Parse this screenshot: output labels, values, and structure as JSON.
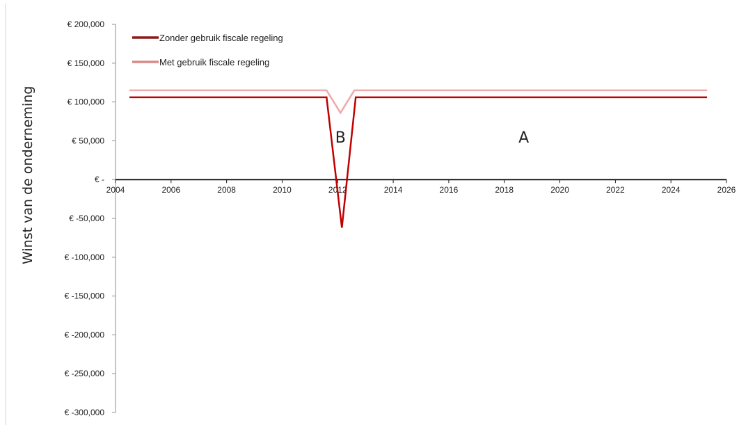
{
  "chart_data": {
    "type": "line",
    "title": "",
    "xlabel": "",
    "ylabel": "Winst van de onderneming",
    "xlim": [
      2004,
      2026
    ],
    "ylim": [
      -300000,
      200000
    ],
    "x_ticks": [
      "2004",
      "2006",
      "2008",
      "2010",
      "2012",
      "2014",
      "2016",
      "2018",
      "2020",
      "2022",
      "2024",
      "2026"
    ],
    "x_tick_values": [
      2004,
      2006,
      2008,
      2010,
      2012,
      2014,
      2016,
      2018,
      2020,
      2022,
      2024,
      2026
    ],
    "y_ticks": [
      "€ 200,000",
      "€ 150,000",
      "€ 100,000",
      "€ 50,000",
      "€ -",
      "€ -50,000",
      "€ -100,000",
      "€ -150,000",
      "€ -200,000",
      "€ -250,000",
      "€ -300,000"
    ],
    "y_tick_values": [
      200000,
      150000,
      100000,
      50000,
      0,
      -50000,
      -100000,
      -150000,
      -200000,
      -250000,
      -300000
    ],
    "grid": false,
    "legend_position": "top-left",
    "series": [
      {
        "name": "Zonder gebruik fiscale regeling",
        "color": "#c00000",
        "legend_color": "#8b1a1a",
        "x": [
          2004.5,
          2011.6,
          2012.15,
          2012.65,
          2025.3
        ],
        "y": [
          106000,
          106000,
          -62000,
          106000,
          106000
        ]
      },
      {
        "name": "Met gebruik fiscale regeling",
        "color": "#f0a8a8",
        "legend_color": "#d88a8a",
        "x": [
          2004.5,
          2011.6,
          2012.1,
          2012.6,
          2025.3
        ],
        "y": [
          115000,
          115000,
          86000,
          115000,
          115000
        ]
      }
    ],
    "annotations": [
      {
        "text": "B",
        "x": 2012.1,
        "y": 55000
      },
      {
        "text": "A",
        "x": 2018.7,
        "y": 55000
      }
    ]
  }
}
